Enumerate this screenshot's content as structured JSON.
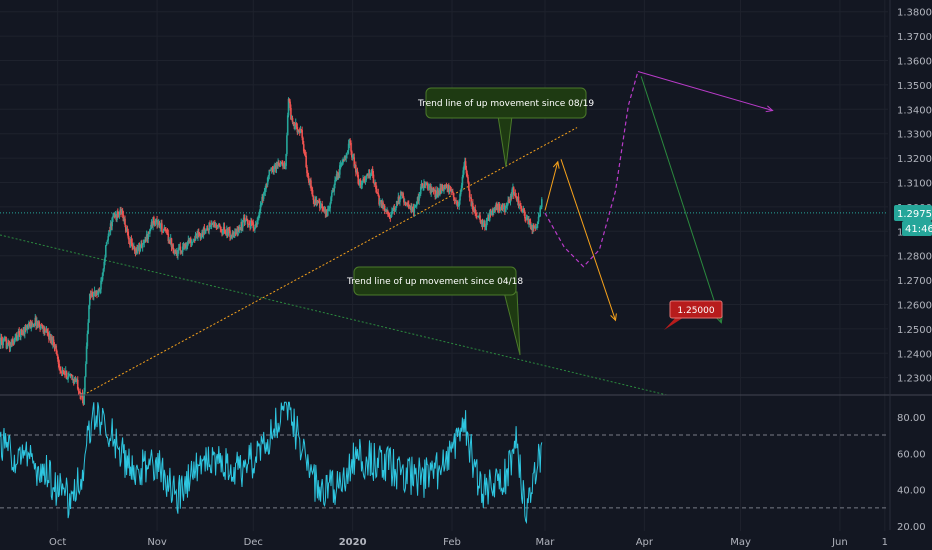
{
  "colors": {
    "background": "#131722",
    "grid": "#1e222d",
    "axis_text": "#b2b5be",
    "candle_up": "#26a69a",
    "candle_down": "#ef5350",
    "rsi_line": "#2ec6e0",
    "price_line": "#26a69a",
    "trend_1908": "#f7a21b",
    "trend_1804": "#2b8a3e",
    "projection_purple": "#b93bc9",
    "projection_orange": "#f7a21b",
    "projection_green": "#2b8a3e",
    "callout_bg": "#1e3a12",
    "callout_border": "#4b7a2a",
    "target_label_bg": "#b71c1c"
  },
  "chart_data": [
    {
      "type": "candlestick",
      "title": "",
      "x_ticks": [
        "Oct",
        "Nov",
        "Dec",
        "2020",
        "Feb",
        "Mar",
        "Apr",
        "May",
        "Jun",
        "1"
      ],
      "y_ticks": [
        "1.23000",
        "1.24000",
        "1.25000",
        "1.26000",
        "1.27000",
        "1.28000",
        "1.29000",
        "1.30000",
        "1.31000",
        "1.32000",
        "1.33000",
        "1.34000",
        "1.35000",
        "1.36000",
        "1.37000",
        "1.38000"
      ],
      "ylim": [
        1.2229,
        1.3848
      ],
      "xlim": [
        "2019-09-13",
        "2020-06-16"
      ],
      "anchors": [
        [
          "2019-09-13",
          1.245
        ],
        [
          "2019-09-16",
          1.243
        ],
        [
          "2019-09-19",
          1.248
        ],
        [
          "2019-09-24",
          1.253
        ],
        [
          "2019-09-26",
          1.251
        ],
        [
          "2019-09-30",
          1.244
        ],
        [
          "2019-10-02",
          1.232
        ],
        [
          "2019-10-04",
          1.231
        ],
        [
          "2019-10-07",
          1.228
        ],
        [
          "2019-10-09",
          1.22
        ],
        [
          "2019-10-11",
          1.264
        ],
        [
          "2019-10-14",
          1.265
        ],
        [
          "2019-10-16",
          1.283
        ],
        [
          "2019-10-18",
          1.295
        ],
        [
          "2019-10-21",
          1.298
        ],
        [
          "2019-10-23",
          1.287
        ],
        [
          "2019-10-25",
          1.282
        ],
        [
          "2019-10-28",
          1.285
        ],
        [
          "2019-10-31",
          1.295
        ],
        [
          "2019-11-04",
          1.289
        ],
        [
          "2019-11-07",
          1.281
        ],
        [
          "2019-11-11",
          1.286
        ],
        [
          "2019-11-14",
          1.288
        ],
        [
          "2019-11-18",
          1.293
        ],
        [
          "2019-11-21",
          1.291
        ],
        [
          "2019-11-25",
          1.288
        ],
        [
          "2019-11-28",
          1.294
        ],
        [
          "2019-12-02",
          1.292
        ],
        [
          "2019-12-04",
          1.304
        ],
        [
          "2019-12-06",
          1.314
        ],
        [
          "2019-12-09",
          1.318
        ],
        [
          "2019-12-11",
          1.316
        ],
        [
          "2019-12-12",
          1.345
        ],
        [
          "2019-12-13",
          1.335
        ],
        [
          "2019-12-16",
          1.33
        ],
        [
          "2019-12-18",
          1.313
        ],
        [
          "2019-12-20",
          1.303
        ],
        [
          "2019-12-24",
          1.297
        ],
        [
          "2019-12-27",
          1.312
        ],
        [
          "2019-12-31",
          1.326
        ],
        [
          "2020-01-03",
          1.309
        ],
        [
          "2020-01-07",
          1.314
        ],
        [
          "2020-01-09",
          1.303
        ],
        [
          "2020-01-13",
          1.296
        ],
        [
          "2020-01-16",
          1.305
        ],
        [
          "2020-01-20",
          1.298
        ],
        [
          "2020-01-23",
          1.31
        ],
        [
          "2020-01-27",
          1.305
        ],
        [
          "2020-01-30",
          1.309
        ],
        [
          "2020-02-03",
          1.301
        ],
        [
          "2020-02-05",
          1.318
        ],
        [
          "2020-02-07",
          1.301
        ],
        [
          "2020-02-11",
          1.292
        ],
        [
          "2020-02-14",
          1.3
        ],
        [
          "2020-02-18",
          1.299
        ],
        [
          "2020-02-20",
          1.307
        ],
        [
          "2020-02-24",
          1.296
        ],
        [
          "2020-02-26",
          1.291
        ],
        [
          "2020-02-27",
          1.29
        ],
        [
          "2020-02-29",
          1.302
        ]
      ],
      "current_price": "1.29754",
      "countdown": "41:46",
      "trend_lines": [
        {
          "label": "Trend line of up movement since 08/19",
          "from": [
            "2019-10-09",
            1.2229
          ],
          "to": [
            "2020-03-11",
            1.3325
          ]
        },
        {
          "label": "Trend line of up movement since 04/18",
          "from": [
            "2019-09-13",
            1.2885
          ],
          "to": [
            "2020-04-08",
            1.2229
          ]
        }
      ],
      "projections": [
        {
          "style": "arrow",
          "color": "projection_orange",
          "points": [
            [
              "2020-03-01",
              1.2985
            ],
            [
              "2020-03-05",
              1.3185
            ]
          ]
        },
        {
          "style": "arrow",
          "color": "projection_orange",
          "points": [
            [
              "2020-03-06",
              1.3195
            ],
            [
              "2020-03-23",
              1.2535
            ]
          ]
        },
        {
          "style": "dashed",
          "color": "projection_purple",
          "points": [
            [
              "2020-03-01",
              1.2975
            ],
            [
              "2020-03-07",
              1.2835
            ],
            [
              "2020-03-13",
              1.2755
            ],
            [
              "2020-03-18",
              1.2825
            ],
            [
              "2020-03-23",
              1.3065
            ],
            [
              "2020-03-27",
              1.3415
            ],
            [
              "2020-03-30",
              1.3555
            ]
          ]
        },
        {
          "style": "arrow",
          "color": "projection_purple",
          "points": [
            [
              "2020-03-30",
              1.3555
            ],
            [
              "2020-05-11",
              1.3395
            ]
          ]
        },
        {
          "style": "arrow",
          "color": "projection_green",
          "points": [
            [
              "2020-03-31",
              1.3535
            ],
            [
              "2020-04-25",
              1.2525
            ]
          ]
        }
      ],
      "target_label": "1.25000"
    },
    {
      "type": "line",
      "title": "",
      "y_ticks": [
        "20.00",
        "40.00",
        "60.00",
        "80.00"
      ],
      "ylim": [
        17.3,
        92
      ],
      "guides": [
        30,
        70
      ],
      "anchors": [
        [
          "2019-09-13",
          66
        ],
        [
          "2019-09-20",
          57
        ],
        [
          "2019-09-27",
          50
        ],
        [
          "2019-10-01",
          40
        ],
        [
          "2019-10-05",
          34
        ],
        [
          "2019-10-09",
          52
        ],
        [
          "2019-10-12",
          85
        ],
        [
          "2019-10-17",
          73
        ],
        [
          "2019-10-24",
          49
        ],
        [
          "2019-10-31",
          56
        ],
        [
          "2019-11-07",
          35
        ],
        [
          "2019-11-14",
          55
        ],
        [
          "2019-11-21",
          54
        ],
        [
          "2019-11-28",
          50
        ],
        [
          "2019-12-05",
          68
        ],
        [
          "2019-12-12",
          86
        ],
        [
          "2019-12-19",
          45
        ],
        [
          "2019-12-26",
          40
        ],
        [
          "2020-01-02",
          58
        ],
        [
          "2020-01-09",
          55
        ],
        [
          "2020-01-16",
          50
        ],
        [
          "2020-01-23",
          46
        ],
        [
          "2020-01-30",
          54
        ],
        [
          "2020-02-05",
          77
        ],
        [
          "2020-02-10",
          38
        ],
        [
          "2020-02-17",
          44
        ],
        [
          "2020-02-21",
          66
        ],
        [
          "2020-02-24",
          26
        ],
        [
          "2020-02-27",
          52
        ],
        [
          "2020-02-29",
          60
        ]
      ]
    }
  ]
}
